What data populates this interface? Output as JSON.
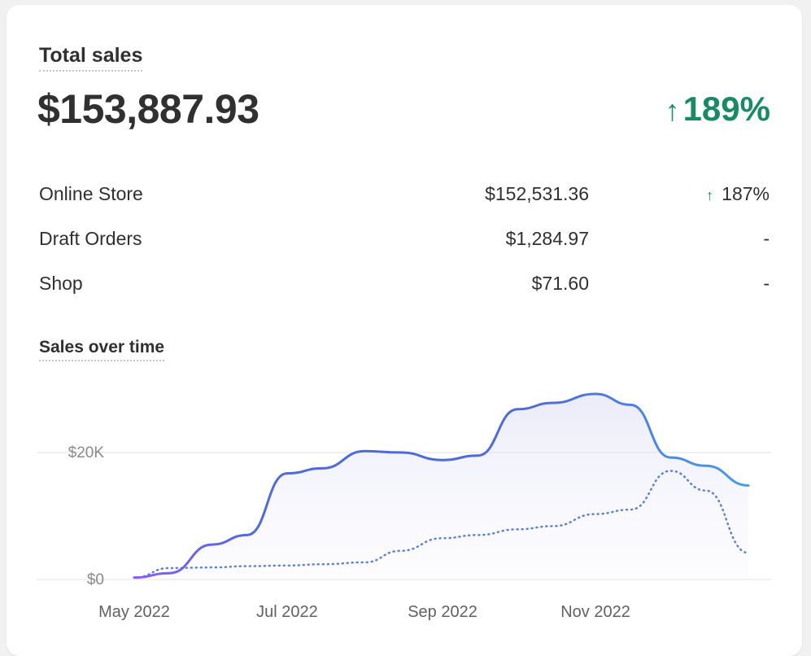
{
  "summary": {
    "title": "Total sales",
    "total": "$153,887.93",
    "change_arrow": "↑",
    "change": "189%"
  },
  "breakdown": [
    {
      "name": "Online Store",
      "amount": "$152,531.36",
      "arrow": "↑",
      "change": "187%"
    },
    {
      "name": "Draft Orders",
      "amount": "$1,284.97",
      "arrow": "",
      "change": "-"
    },
    {
      "name": "Shop",
      "amount": "$71.60",
      "arrow": "",
      "change": "-"
    }
  ],
  "chart_title": "Sales over time",
  "colors": {
    "positive": "#1a8a64",
    "line_start": "#8b5cf6",
    "line_mid": "#4f6bd8",
    "line_end": "#4a9de8",
    "comparison": "#5b80d6"
  },
  "chart_data": {
    "type": "line",
    "title": "Sales over time",
    "xlabel": "",
    "ylabel": "",
    "x_tick_labels": [
      "May 2022",
      "Jul 2022",
      "Sep 2022",
      "Nov 2022"
    ],
    "y_tick_labels": [
      "$20K",
      "$0"
    ],
    "y_ticks": [
      20000,
      0
    ],
    "ylim": [
      0,
      31000
    ],
    "grid": true,
    "x": [
      "2022-05-01",
      "2022-05-15",
      "2022-06-01",
      "2022-06-15",
      "2022-07-01",
      "2022-07-15",
      "2022-08-01",
      "2022-08-15",
      "2022-09-01",
      "2022-09-15",
      "2022-10-01",
      "2022-10-15",
      "2022-11-01",
      "2022-11-15",
      "2022-12-01",
      "2022-12-15",
      "2023-01-01"
    ],
    "series": [
      {
        "style": "solid",
        "values": [
          300,
          1000,
          5500,
          7000,
          16700,
          17500,
          20200,
          20000,
          18800,
          19500,
          26800,
          27800,
          29200,
          27500,
          19200,
          17900,
          14800
        ]
      },
      {
        "style": "dotted",
        "values": [
          300,
          1800,
          1900,
          2100,
          2200,
          2400,
          2700,
          4500,
          6500,
          7000,
          7900,
          8400,
          10300,
          11000,
          17100,
          14000,
          4200
        ]
      }
    ]
  }
}
